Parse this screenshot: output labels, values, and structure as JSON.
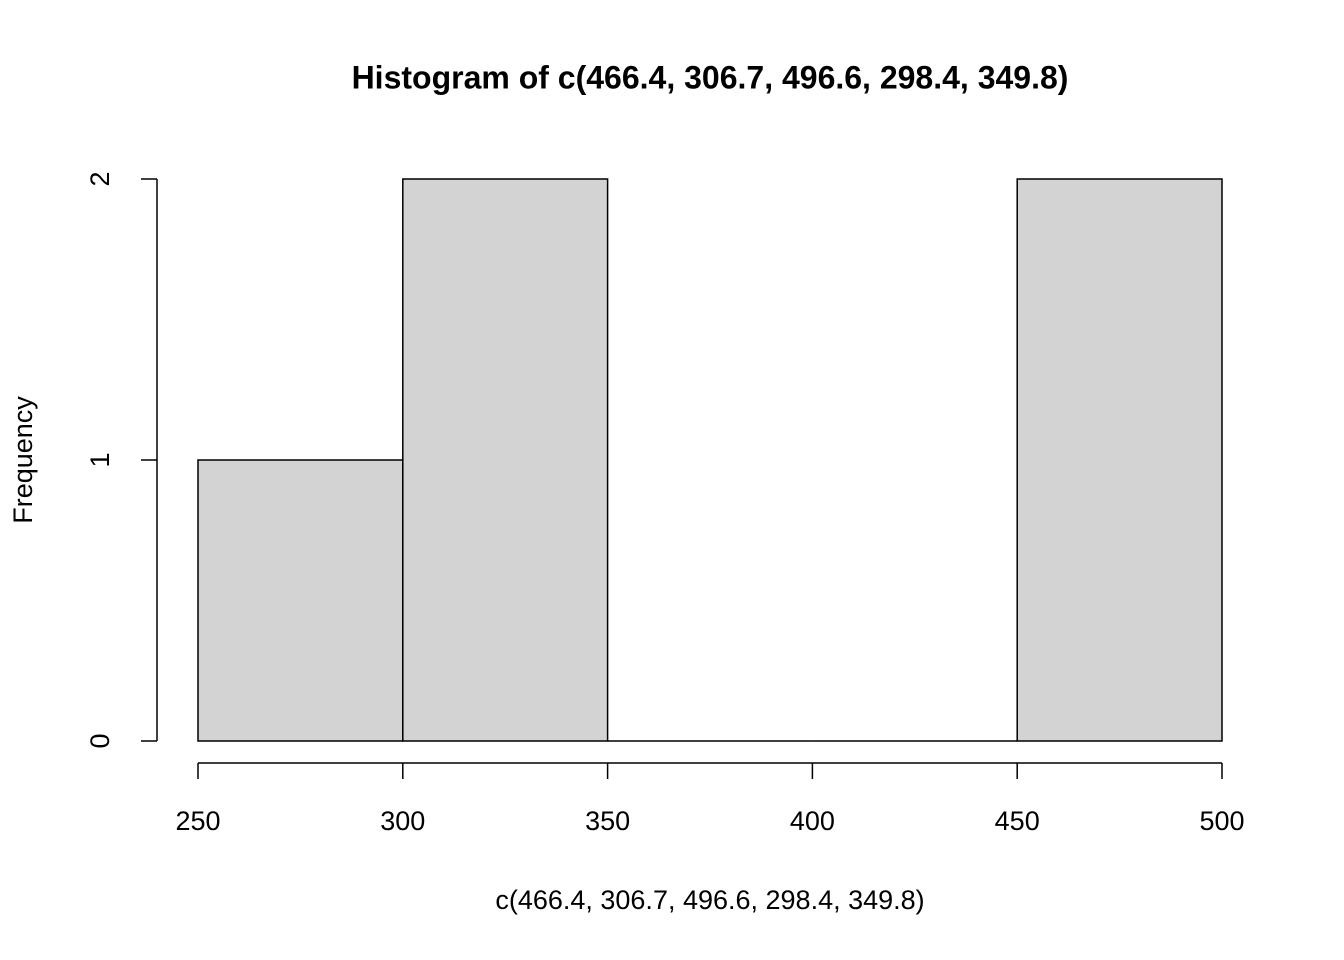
{
  "chart_data": {
    "type": "histogram",
    "title": "Histogram of c(466.4, 306.7, 496.6, 298.4, 349.8)",
    "x_label": "c(466.4, 306.7, 496.6, 298.4, 349.8)",
    "y_label": "Frequency",
    "bins": [
      250,
      300,
      350,
      400,
      450,
      500
    ],
    "values": [
      1,
      2,
      0,
      0,
      2
    ],
    "color": "#d3d3d3",
    "xlim": [
      250,
      500
    ],
    "xticks": [
      250,
      300,
      350,
      400,
      450,
      500
    ],
    "ylim": [
      0,
      2
    ],
    "yticks": [
      0,
      1,
      2
    ]
  }
}
